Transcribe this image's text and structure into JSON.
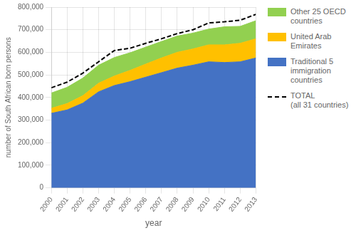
{
  "chart_data": {
    "type": "area",
    "stacked": true,
    "xlabel": "year",
    "ylabel": "number of South African born persons",
    "x": [
      2000,
      2001,
      2002,
      2003,
      2004,
      2005,
      2006,
      2007,
      2008,
      2009,
      2010,
      2011,
      2012,
      2013
    ],
    "series": [
      {
        "name": "Traditional 5\nimmigration\ncountries",
        "color": "#4472C4",
        "values": [
          330000,
          345000,
          375000,
          425000,
          453000,
          470000,
          490000,
          510000,
          530000,
          543000,
          558000,
          555000,
          558000,
          575000
        ]
      },
      {
        "name": "United Arab\nEmirates",
        "color": "#FFC000",
        "values": [
          22000,
          28000,
          33000,
          38000,
          42000,
          50000,
          58000,
          65000,
          70000,
          72000,
          75000,
          78000,
          82000,
          85000
        ]
      },
      {
        "name": "Other 25 OECD\ncountries",
        "color": "#92D050",
        "values": [
          68000,
          72000,
          78000,
          80000,
          82000,
          78000,
          75000,
          73000,
          72000,
          70000,
          70000,
          80000,
          75000,
          80000
        ]
      },
      {
        "name": "TOTAL\n(all 31 countries)",
        "type": "line",
        "color": "#000000",
        "line_style": "dashed",
        "values": [
          443000,
          468000,
          508000,
          558000,
          608000,
          618000,
          640000,
          660000,
          683000,
          700000,
          730000,
          735000,
          742000,
          768000
        ]
      }
    ],
    "xlim": [
      2000,
      2013
    ],
    "xticks": [
      2000,
      2001,
      2002,
      2003,
      2004,
      2005,
      2006,
      2007,
      2008,
      2009,
      2010,
      2011,
      2012,
      2013
    ],
    "ylim": [
      0,
      800000
    ],
    "yticks": [
      0,
      {
        "value": 100000,
        "label": "100,000"
      },
      {
        "value": 200000,
        "label": "200,000"
      },
      {
        "value": 300000,
        "label": "300,000"
      },
      {
        "value": 400000,
        "label": "400,000"
      },
      {
        "value": 500000,
        "label": "500,000"
      },
      {
        "value": 600000,
        "label": "600,000"
      },
      {
        "value": 700000,
        "label": "700,000"
      },
      {
        "value": 800000,
        "label": "800,000"
      }
    ],
    "grid": true,
    "legend": "right"
  }
}
